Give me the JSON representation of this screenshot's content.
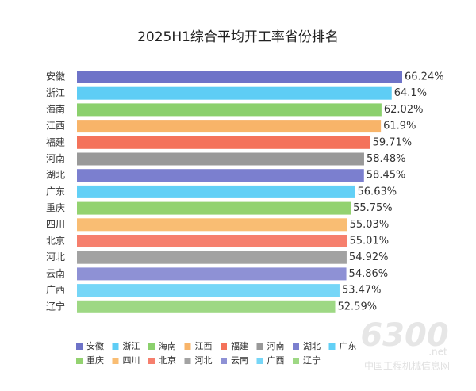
{
  "chart_data": {
    "type": "bar",
    "orientation": "horizontal",
    "title": "2025H1综合平均开工率省份排名",
    "categories": [
      "安徽",
      "浙江",
      "海南",
      "江西",
      "福建",
      "河南",
      "湖北",
      "广东",
      "重庆",
      "四川",
      "北京",
      "河北",
      "云南",
      "广西",
      "辽宁"
    ],
    "values": [
      66.24,
      64.1,
      62.02,
      61.9,
      59.71,
      58.48,
      58.45,
      56.63,
      55.75,
      55.03,
      55.01,
      54.92,
      54.86,
      53.47,
      52.59
    ],
    "value_labels": [
      "66.24%",
      "64.1%",
      "62.02%",
      "61.9%",
      "59.71%",
      "58.48%",
      "58.45%",
      "56.63%",
      "55.75%",
      "55.03%",
      "55.01%",
      "54.92%",
      "54.86%",
      "53.47%",
      "52.59%"
    ],
    "colors": [
      "#6e73c8",
      "#5ecdf5",
      "#8bd06d",
      "#f8b469",
      "#f4725a",
      "#999999",
      "#7b7fcf",
      "#62d0f6",
      "#93d270",
      "#f9bd73",
      "#f67f6d",
      "#a2a2a2",
      "#8e91d5",
      "#76d6f7",
      "#9ed884"
    ]
  },
  "watermark": {
    "logo": "6300",
    "domain": ".net",
    "site": "中国工程机械信息网"
  }
}
